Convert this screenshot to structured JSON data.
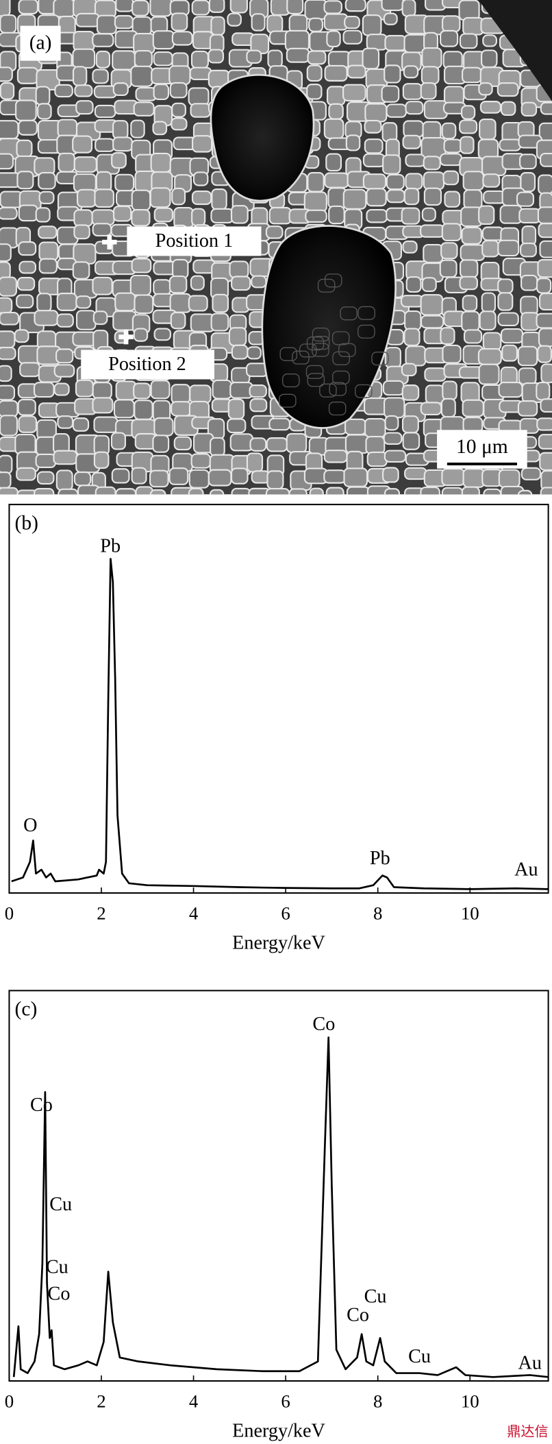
{
  "panel_a": {
    "label": "(a)",
    "positions": [
      "Position 1",
      "Position 2"
    ],
    "scale_bar": "10 μm"
  },
  "watermark": "鼎达信",
  "chart_data": [
    {
      "type": "line",
      "panel_label": "(b)",
      "x_label": "Energy/keV",
      "color": "#000000",
      "x": [
        0.05,
        0.3,
        0.45,
        0.52,
        0.58,
        0.7,
        0.8,
        0.9,
        1.0,
        1.5,
        1.9,
        1.95,
        2.05,
        2.1,
        2.15,
        2.2,
        2.25,
        2.3,
        2.35,
        2.45,
        2.6,
        3,
        4,
        5,
        6,
        7,
        7.6,
        7.9,
        8.1,
        8.2,
        8.35,
        9,
        10,
        11,
        11.7
      ],
      "values": [
        3,
        4,
        8,
        13.5,
        5,
        6,
        4,
        5,
        3,
        3.5,
        4.5,
        6,
        5,
        8,
        50,
        86,
        80,
        55,
        20,
        5,
        2.5,
        2,
        1.8,
        1.5,
        1.3,
        1.2,
        1.2,
        2,
        4.5,
        4,
        1.5,
        1.2,
        1,
        1.2,
        1
      ],
      "xlim": [
        0,
        11.7
      ],
      "ylim": [
        0,
        100
      ],
      "xticks": [
        0,
        2,
        4,
        6,
        8,
        10
      ],
      "annotations": [
        "Pb",
        "O",
        "Pb",
        "Au"
      ]
    },
    {
      "type": "line",
      "panel_label": "(c)",
      "x_label": "Energy/keV",
      "color": "#000000",
      "x": [
        0.1,
        0.2,
        0.25,
        0.4,
        0.55,
        0.65,
        0.72,
        0.78,
        0.82,
        0.88,
        0.92,
        0.97,
        1.2,
        1.5,
        1.7,
        1.9,
        2.05,
        2.15,
        2.25,
        2.4,
        2.8,
        3.5,
        4.5,
        5.5,
        6.3,
        6.7,
        6.85,
        6.93,
        7.0,
        7.1,
        7.3,
        7.55,
        7.65,
        7.75,
        7.9,
        8.05,
        8.15,
        8.4,
        8.9,
        9.3,
        9.7,
        9.9,
        10.5,
        11.3,
        11.7
      ],
      "values": [
        1,
        14,
        3,
        2,
        5,
        12,
        30,
        74,
        25,
        11,
        13,
        4,
        3,
        4,
        5,
        4,
        10,
        28,
        15,
        6,
        5,
        4,
        3,
        2.5,
        2.5,
        5,
        60,
        88,
        50,
        8,
        3,
        6,
        12,
        5,
        4,
        11,
        5,
        2,
        2,
        1.5,
        3.5,
        1.5,
        1,
        1.5,
        1
      ],
      "xlim": [
        0,
        11.7
      ],
      "ylim": [
        0,
        100
      ],
      "xticks": [
        0,
        2,
        4,
        6,
        8,
        10
      ],
      "annotations": [
        "Co",
        "Co",
        "Cu",
        "Cu",
        "Co",
        "Co",
        "Cu",
        "Cu",
        "Au"
      ]
    }
  ]
}
